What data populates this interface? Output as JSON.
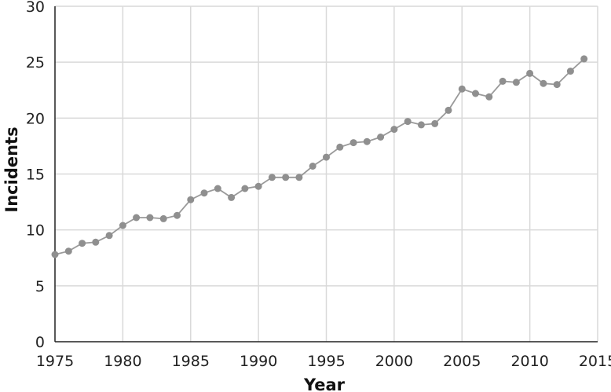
{
  "colors": {
    "line": "#9a9a9a",
    "marker": "#8f8f8f",
    "grid": "#d9d9d9",
    "axis": "#222222",
    "background": "#ffffff"
  },
  "chart_data": {
    "type": "line",
    "title": "",
    "xlabel": "Year",
    "ylabel": "Incidents",
    "xlim": [
      1975,
      2015
    ],
    "ylim": [
      0,
      30
    ],
    "grid": true,
    "legend": "none",
    "x_ticks": [
      "1975",
      "1980",
      "1985",
      "1990",
      "1995",
      "2000",
      "2005",
      "2010",
      "2015"
    ],
    "y_ticks": [
      "0",
      "5",
      "10",
      "15",
      "20",
      "25",
      "30"
    ],
    "series": [
      {
        "x": [
          1975,
          1976,
          1977,
          1978,
          1979,
          1980,
          1981,
          1982,
          1983,
          1984,
          1985,
          1986,
          1987,
          1988,
          1989,
          1990,
          1991,
          1992,
          1993,
          1994,
          1995,
          1996,
          1997,
          1998,
          1999,
          2000,
          2001,
          2002,
          2003,
          2004,
          2005,
          2006,
          2007,
          2008,
          2009,
          2010,
          2011,
          2012,
          2013,
          2014
        ],
        "y": [
          7.8,
          8.1,
          8.8,
          8.9,
          9.5,
          10.4,
          11.1,
          11.1,
          11.0,
          11.3,
          12.7,
          13.3,
          13.7,
          12.9,
          13.7,
          13.9,
          14.7,
          14.7,
          14.7,
          15.7,
          16.5,
          17.4,
          17.8,
          17.9,
          18.3,
          19.0,
          19.7,
          19.4,
          19.5,
          20.7,
          22.6,
          22.2,
          21.9,
          23.3,
          23.2,
          24.0,
          23.1,
          23.0,
          24.2,
          25.3
        ]
      }
    ]
  }
}
